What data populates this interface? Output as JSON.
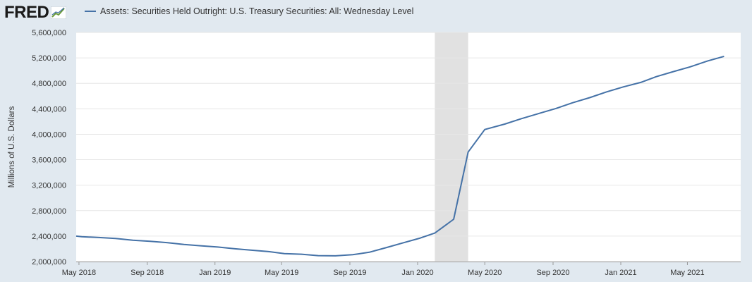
{
  "logo": {
    "text": "FRED",
    "icon": "chart-line-icon"
  },
  "colors": {
    "series": "#4572a7",
    "recession": "#e1e1e1",
    "grid": "#e6e6e6",
    "page_bg": "#e1e9f0",
    "plot_bg": "#ffffff"
  },
  "chart_data": {
    "type": "line",
    "title": "",
    "legend_position": "top-left",
    "ylabel": "Millions of U.S. Dollars",
    "xlabel": "",
    "ylim": [
      2000000,
      5600000
    ],
    "xlim": [
      "2018-04-26",
      "2021-08-05"
    ],
    "grid": true,
    "y_ticks": [
      {
        "value": 2000000,
        "label": "2,000,000"
      },
      {
        "value": 2400000,
        "label": "2,400,000"
      },
      {
        "value": 2800000,
        "label": "2,800,000"
      },
      {
        "value": 3200000,
        "label": "3,200,000"
      },
      {
        "value": 3600000,
        "label": "3,600,000"
      },
      {
        "value": 4000000,
        "label": "4,000,000"
      },
      {
        "value": 4400000,
        "label": "4,400,000"
      },
      {
        "value": 4800000,
        "label": "4,800,000"
      },
      {
        "value": 5200000,
        "label": "5,200,000"
      },
      {
        "value": 5600000,
        "label": "5,600,000"
      }
    ],
    "x_ticks": [
      {
        "date": "2018-05-01",
        "label": "May 2018"
      },
      {
        "date": "2018-09-01",
        "label": "Sep 2018"
      },
      {
        "date": "2019-01-01",
        "label": "Jan 2019"
      },
      {
        "date": "2019-05-01",
        "label": "May 2019"
      },
      {
        "date": "2019-09-01",
        "label": "Sep 2019"
      },
      {
        "date": "2020-01-01",
        "label": "Jan 2020"
      },
      {
        "date": "2020-05-01",
        "label": "May 2020"
      },
      {
        "date": "2020-09-01",
        "label": "Sep 2020"
      },
      {
        "date": "2021-01-01",
        "label": "Jan 2021"
      },
      {
        "date": "2021-05-01",
        "label": "May 2021"
      }
    ],
    "recession": {
      "start": "2020-02-01",
      "end": "2020-04-01"
    },
    "series": [
      {
        "name": "Assets: Securities Held Outright: U.S. Treasury Securities: All: Wednesday Level",
        "points": [
          {
            "x": "2018-04-26",
            "y": 2400000
          },
          {
            "x": "2018-05-06",
            "y": 2390000
          },
          {
            "x": "2018-06-06",
            "y": 2378000
          },
          {
            "x": "2018-07-06",
            "y": 2362000
          },
          {
            "x": "2018-08-06",
            "y": 2335000
          },
          {
            "x": "2018-09-06",
            "y": 2318000
          },
          {
            "x": "2018-10-06",
            "y": 2298000
          },
          {
            "x": "2018-11-06",
            "y": 2268000
          },
          {
            "x": "2018-12-06",
            "y": 2248000
          },
          {
            "x": "2019-01-06",
            "y": 2228000
          },
          {
            "x": "2019-02-06",
            "y": 2200000
          },
          {
            "x": "2019-03-06",
            "y": 2180000
          },
          {
            "x": "2019-04-06",
            "y": 2158000
          },
          {
            "x": "2019-05-06",
            "y": 2125000
          },
          {
            "x": "2019-06-06",
            "y": 2115000
          },
          {
            "x": "2019-07-06",
            "y": 2093000
          },
          {
            "x": "2019-08-06",
            "y": 2090000
          },
          {
            "x": "2019-09-06",
            "y": 2108000
          },
          {
            "x": "2019-10-06",
            "y": 2146000
          },
          {
            "x": "2019-11-06",
            "y": 2220000
          },
          {
            "x": "2019-12-06",
            "y": 2295000
          },
          {
            "x": "2020-01-06",
            "y": 2370000
          },
          {
            "x": "2020-02-01",
            "y": 2448000
          },
          {
            "x": "2020-03-06",
            "y": 2665000
          },
          {
            "x": "2020-04-01",
            "y": 3720000
          },
          {
            "x": "2020-05-01",
            "y": 4075000
          },
          {
            "x": "2020-06-06",
            "y": 4160000
          },
          {
            "x": "2020-07-06",
            "y": 4245000
          },
          {
            "x": "2020-08-06",
            "y": 4325000
          },
          {
            "x": "2020-09-06",
            "y": 4405000
          },
          {
            "x": "2020-10-06",
            "y": 4495000
          },
          {
            "x": "2020-11-06",
            "y": 4575000
          },
          {
            "x": "2020-12-06",
            "y": 4665000
          },
          {
            "x": "2021-01-06",
            "y": 4745000
          },
          {
            "x": "2021-02-06",
            "y": 4815000
          },
          {
            "x": "2021-03-06",
            "y": 4905000
          },
          {
            "x": "2021-04-06",
            "y": 4985000
          },
          {
            "x": "2021-05-06",
            "y": 5060000
          },
          {
            "x": "2021-06-06",
            "y": 5150000
          },
          {
            "x": "2021-07-06",
            "y": 5225000
          }
        ]
      }
    ]
  }
}
